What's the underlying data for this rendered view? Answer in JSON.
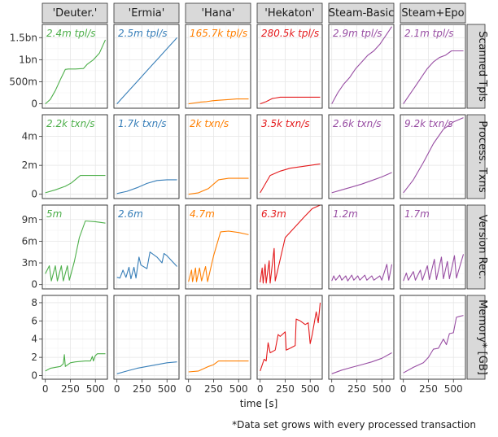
{
  "chart_data": {
    "type": "line",
    "xlabel": "time [s]",
    "footnote": "*Data set grows with every processed transaction",
    "x_ticks": [
      0,
      250,
      500
    ],
    "x_tick_labels": [
      "0",
      "250",
      "500"
    ],
    "xlim": [
      -30,
      620
    ],
    "columns": [
      {
        "label": "'Deuter.'",
        "color": "#4daf4a"
      },
      {
        "label": "'Ermia'",
        "color": "#377eb8"
      },
      {
        "label": "'Hana'",
        "color": "#ff7f00"
      },
      {
        "label": "'Hekaton'",
        "color": "#e41a1c"
      },
      {
        "label": "Steam-Basic",
        "color": "#984ea3"
      },
      {
        "label": "Steam+Epo",
        "color": "#984ea3"
      }
    ],
    "rows": [
      {
        "label": "Scanned Tpls",
        "ylim": [
          -0.1,
          1.8
        ],
        "y_ticks": [
          0,
          0.5,
          1.0,
          1.5
        ],
        "y_tick_labels": [
          "0",
          "500m",
          "1bn",
          "1.5bn"
        ],
        "annotations": [
          "2.4m tpl/s",
          "2.5m tpl/s",
          "165.7k tpl/s",
          "280.5k tpl/s",
          "2.9m tpl/s",
          "2.1m tpl/s"
        ]
      },
      {
        "label": "Process. Txns",
        "ylim": [
          -0.3,
          5.5
        ],
        "y_ticks": [
          0,
          2,
          4
        ],
        "y_tick_labels": [
          "0",
          "2m",
          "4m"
        ],
        "annotations": [
          "2.2k txn/s",
          "1.7k txn/s",
          "2k txn/s",
          "3.5k txn/s",
          "2.6k txn/s",
          "9.2k txn/s"
        ]
      },
      {
        "label": "Version Rec.",
        "ylim": [
          -0.6,
          11
        ],
        "y_ticks": [
          0,
          3,
          6,
          9
        ],
        "y_tick_labels": [
          "0",
          "3m",
          "6m",
          "9m"
        ],
        "annotations": [
          "5m",
          "2.6m",
          "4.7m",
          "6.3m",
          "1.2m",
          "1.7m"
        ]
      },
      {
        "label": "Memory* [GB]",
        "ylim": [
          -0.4,
          8.8
        ],
        "y_ticks": [
          0,
          2,
          4,
          6,
          8
        ],
        "y_tick_labels": [
          "0",
          "2",
          "4",
          "6",
          "8"
        ],
        "annotations": [
          "",
          "",
          "",
          "",
          "",
          ""
        ]
      }
    ],
    "series": [
      [
        [
          [
            0,
            0
          ],
          [
            50,
            0.1
          ],
          [
            100,
            0.3
          ],
          [
            150,
            0.55
          ],
          [
            200,
            0.78
          ],
          [
            230,
            0.79
          ],
          [
            300,
            0.79
          ],
          [
            380,
            0.8
          ],
          [
            420,
            0.9
          ],
          [
            480,
            1.0
          ],
          [
            540,
            1.15
          ],
          [
            600,
            1.45
          ]
        ],
        [
          [
            0,
            0.1
          ],
          [
            100,
            0.3
          ],
          [
            200,
            0.55
          ],
          [
            260,
            0.78
          ],
          [
            350,
            1.3
          ],
          [
            450,
            1.3
          ],
          [
            600,
            1.3
          ]
        ],
        [
          [
            0,
            1.5
          ],
          [
            40,
            2.6
          ],
          [
            60,
            0.5
          ],
          [
            100,
            2.6
          ],
          [
            120,
            0.5
          ],
          [
            160,
            2.6
          ],
          [
            180,
            0.5
          ],
          [
            220,
            2.6
          ],
          [
            240,
            0.6
          ],
          [
            290,
            3.2
          ],
          [
            340,
            6.5
          ],
          [
            400,
            8.8
          ],
          [
            500,
            8.7
          ],
          [
            600,
            8.5
          ]
        ],
        [
          [
            0,
            0.5
          ],
          [
            50,
            0.8
          ],
          [
            100,
            0.9
          ],
          [
            150,
            1.0
          ],
          [
            180,
            1.3
          ],
          [
            190,
            2.3
          ],
          [
            200,
            1.0
          ],
          [
            250,
            1.4
          ],
          [
            300,
            1.5
          ],
          [
            400,
            1.6
          ],
          [
            450,
            1.6
          ],
          [
            470,
            2.1
          ],
          [
            480,
            1.6
          ],
          [
            500,
            2.2
          ],
          [
            520,
            2.4
          ],
          [
            600,
            2.4
          ]
        ]
      ],
      [
        [
          [
            0,
            0
          ],
          [
            60,
            0.15
          ],
          [
            120,
            0.3
          ],
          [
            180,
            0.45
          ],
          [
            240,
            0.6
          ],
          [
            300,
            0.75
          ],
          [
            360,
            0.9
          ],
          [
            420,
            1.05
          ],
          [
            480,
            1.2
          ],
          [
            540,
            1.35
          ],
          [
            580,
            1.45
          ],
          [
            600,
            1.5
          ]
        ],
        [
          [
            0,
            0.05
          ],
          [
            100,
            0.2
          ],
          [
            200,
            0.45
          ],
          [
            300,
            0.75
          ],
          [
            400,
            0.95
          ],
          [
            500,
            1.0
          ],
          [
            600,
            1.0
          ]
        ],
        [
          [
            0,
            1.0
          ],
          [
            30,
            0.9
          ],
          [
            60,
            2.0
          ],
          [
            90,
            1.0
          ],
          [
            120,
            2.4
          ],
          [
            140,
            0.8
          ],
          [
            170,
            2.4
          ],
          [
            190,
            0.9
          ],
          [
            220,
            3.8
          ],
          [
            240,
            2.7
          ],
          [
            300,
            2.2
          ],
          [
            330,
            4.5
          ],
          [
            400,
            3.8
          ],
          [
            450,
            3.0
          ],
          [
            470,
            4.3
          ],
          [
            500,
            4.0
          ],
          [
            600,
            2.5
          ]
        ],
        [
          [
            0,
            0.2
          ],
          [
            100,
            0.5
          ],
          [
            200,
            0.8
          ],
          [
            300,
            1.0
          ],
          [
            400,
            1.2
          ],
          [
            500,
            1.4
          ],
          [
            600,
            1.5
          ]
        ]
      ],
      [
        [
          [
            0,
            0
          ],
          [
            60,
            0.02
          ],
          [
            120,
            0.04
          ],
          [
            180,
            0.05
          ],
          [
            240,
            0.07
          ],
          [
            300,
            0.08
          ],
          [
            360,
            0.09
          ],
          [
            420,
            0.1
          ],
          [
            480,
            0.11
          ],
          [
            540,
            0.11
          ],
          [
            600,
            0.11
          ]
        ],
        [
          [
            0,
            0
          ],
          [
            100,
            0.1
          ],
          [
            200,
            0.4
          ],
          [
            300,
            1.0
          ],
          [
            400,
            1.1
          ],
          [
            500,
            1.1
          ],
          [
            600,
            1.1
          ]
        ],
        [
          [
            0,
            0.4
          ],
          [
            30,
            2.0
          ],
          [
            40,
            0.4
          ],
          [
            70,
            2.3
          ],
          [
            80,
            0.4
          ],
          [
            110,
            2.3
          ],
          [
            130,
            0.5
          ],
          [
            170,
            2.5
          ],
          [
            190,
            0.4
          ],
          [
            250,
            4.0
          ],
          [
            320,
            7.3
          ],
          [
            400,
            7.4
          ],
          [
            500,
            7.2
          ],
          [
            600,
            6.9
          ]
        ],
        [
          [
            0,
            0.4
          ],
          [
            100,
            0.5
          ],
          [
            200,
            1.0
          ],
          [
            250,
            1.2
          ],
          [
            300,
            1.6
          ],
          [
            600,
            1.6
          ]
        ]
      ],
      [
        [
          [
            0,
            0
          ],
          [
            60,
            0.05
          ],
          [
            120,
            0.12
          ],
          [
            150,
            0.13
          ],
          [
            200,
            0.15
          ],
          [
            600,
            0.15
          ]
        ],
        [
          [
            0,
            0.1
          ],
          [
            100,
            1.3
          ],
          [
            200,
            1.6
          ],
          [
            300,
            1.8
          ],
          [
            400,
            1.9
          ],
          [
            500,
            2.0
          ],
          [
            600,
            2.1
          ]
        ],
        [
          [
            0,
            0.3
          ],
          [
            20,
            2.3
          ],
          [
            30,
            0.2
          ],
          [
            50,
            2.8
          ],
          [
            60,
            0.2
          ],
          [
            90,
            3.3
          ],
          [
            100,
            0.2
          ],
          [
            140,
            5.0
          ],
          [
            150,
            0.5
          ],
          [
            250,
            6.5
          ],
          [
            350,
            8.0
          ],
          [
            450,
            9.5
          ],
          [
            520,
            10.5
          ],
          [
            600,
            11.0
          ]
        ],
        [
          [
            0,
            0.5
          ],
          [
            40,
            1.8
          ],
          [
            60,
            1.6
          ],
          [
            80,
            3.6
          ],
          [
            100,
            2.5
          ],
          [
            150,
            2.8
          ],
          [
            180,
            4.5
          ],
          [
            200,
            4.3
          ],
          [
            250,
            4.8
          ],
          [
            260,
            2.8
          ],
          [
            300,
            3.0
          ],
          [
            350,
            3.3
          ],
          [
            360,
            6.2
          ],
          [
            400,
            6.0
          ],
          [
            450,
            5.6
          ],
          [
            480,
            5.8
          ],
          [
            500,
            3.5
          ],
          [
            520,
            4.5
          ],
          [
            560,
            7.0
          ],
          [
            580,
            5.8
          ],
          [
            600,
            8.0
          ]
        ]
      ],
      [
        [
          [
            0,
            0
          ],
          [
            60,
            0.25
          ],
          [
            120,
            0.45
          ],
          [
            180,
            0.6
          ],
          [
            240,
            0.8
          ],
          [
            300,
            0.95
          ],
          [
            360,
            1.1
          ],
          [
            420,
            1.2
          ],
          [
            480,
            1.35
          ],
          [
            540,
            1.55
          ],
          [
            600,
            1.75
          ]
        ],
        [
          [
            0,
            0.1
          ],
          [
            100,
            0.3
          ],
          [
            200,
            0.5
          ],
          [
            300,
            0.7
          ],
          [
            400,
            0.95
          ],
          [
            500,
            1.2
          ],
          [
            600,
            1.5
          ]
        ],
        [
          [
            0,
            0.5
          ],
          [
            20,
            1.2
          ],
          [
            40,
            0.6
          ],
          [
            80,
            1.3
          ],
          [
            100,
            0.6
          ],
          [
            140,
            1.2
          ],
          [
            160,
            0.5
          ],
          [
            200,
            1.3
          ],
          [
            220,
            0.6
          ],
          [
            260,
            1.2
          ],
          [
            280,
            0.6
          ],
          [
            330,
            1.3
          ],
          [
            350,
            0.6
          ],
          [
            400,
            1.2
          ],
          [
            420,
            0.6
          ],
          [
            480,
            1.2
          ],
          [
            500,
            0.6
          ],
          [
            550,
            2.8
          ],
          [
            570,
            0.6
          ],
          [
            600,
            2.8
          ]
        ],
        [
          [
            0,
            0.2
          ],
          [
            100,
            0.6
          ],
          [
            200,
            0.9
          ],
          [
            300,
            1.2
          ],
          [
            400,
            1.5
          ],
          [
            500,
            1.9
          ],
          [
            600,
            2.5
          ]
        ]
      ],
      [
        [
          [
            0,
            0
          ],
          [
            60,
            0.2
          ],
          [
            120,
            0.4
          ],
          [
            180,
            0.6
          ],
          [
            240,
            0.8
          ],
          [
            300,
            0.95
          ],
          [
            360,
            1.05
          ],
          [
            420,
            1.1
          ],
          [
            480,
            1.2
          ],
          [
            540,
            1.2
          ],
          [
            600,
            1.2
          ]
        ],
        [
          [
            0,
            0.1
          ],
          [
            100,
            1.0
          ],
          [
            200,
            2.2
          ],
          [
            300,
            3.5
          ],
          [
            400,
            4.5
          ],
          [
            500,
            5.0
          ],
          [
            600,
            5.3
          ]
        ],
        [
          [
            0,
            0.5
          ],
          [
            30,
            1.6
          ],
          [
            50,
            0.6
          ],
          [
            100,
            1.8
          ],
          [
            120,
            0.6
          ],
          [
            170,
            2.0
          ],
          [
            190,
            0.6
          ],
          [
            240,
            2.6
          ],
          [
            260,
            0.7
          ],
          [
            310,
            3.5
          ],
          [
            330,
            0.7
          ],
          [
            380,
            3.8
          ],
          [
            400,
            0.8
          ],
          [
            440,
            3.2
          ],
          [
            460,
            0.8
          ],
          [
            510,
            4.0
          ],
          [
            530,
            0.9
          ],
          [
            600,
            4.2
          ]
        ],
        [
          [
            0,
            0.3
          ],
          [
            100,
            0.9
          ],
          [
            200,
            1.4
          ],
          [
            250,
            2.0
          ],
          [
            300,
            2.9
          ],
          [
            350,
            3.0
          ],
          [
            400,
            4.0
          ],
          [
            430,
            3.4
          ],
          [
            460,
            4.6
          ],
          [
            500,
            4.7
          ],
          [
            530,
            6.4
          ],
          [
            560,
            6.5
          ],
          [
            600,
            6.6
          ]
        ]
      ]
    ]
  }
}
